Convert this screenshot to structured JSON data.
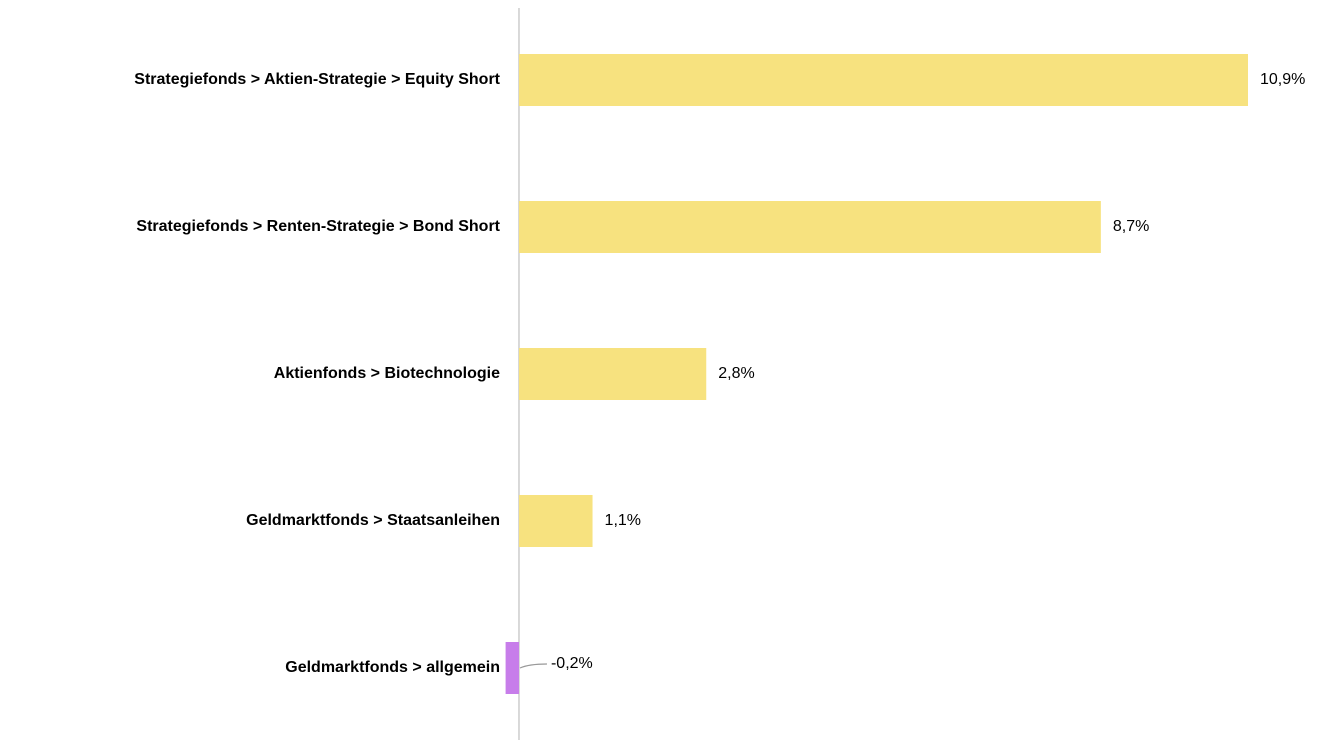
{
  "chart_data": {
    "type": "barh",
    "categories": [
      "Strategiefonds > Aktien-Strategie > Equity Short",
      "Strategiefonds > Renten-Strategie > Bond Short",
      "Aktienfonds > Biotechnologie",
      "Geldmarktfonds > Staatsanleihen",
      "Geldmarktfonds > allgemein"
    ],
    "values": [
      10.9,
      8.7,
      2.8,
      1.1,
      -0.2
    ],
    "value_labels": [
      "10,9%",
      "8,7%",
      "2,8%",
      "1,1%",
      "-0,2%"
    ],
    "colors": [
      "#f7e27f",
      "#f7e27f",
      "#f7e27f",
      "#f7e27f",
      "#c77dea"
    ]
  }
}
